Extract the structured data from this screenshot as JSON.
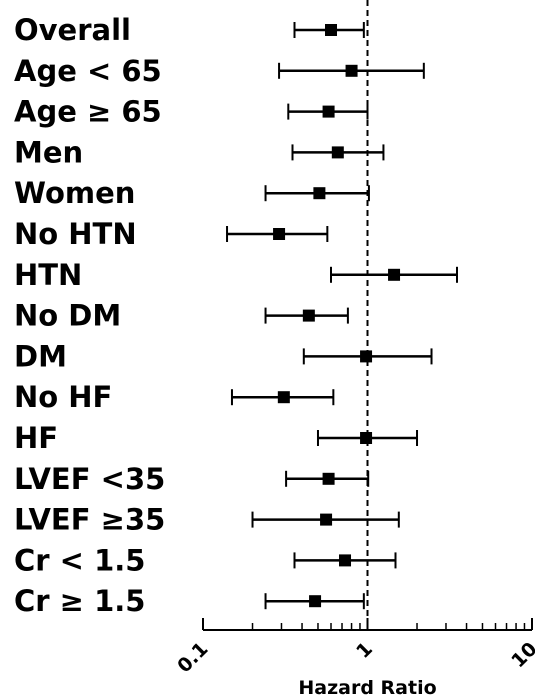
{
  "chart_data": {
    "type": "forest",
    "xlabel": "Hazard Ratio",
    "x_scale": "log",
    "xlim": [
      0.1,
      10
    ],
    "x_ticks": [
      "0.1",
      "1",
      "10"
    ],
    "reference_line": 1,
    "rows": [
      {
        "label": "Overall",
        "hr": 0.6,
        "lo": 0.36,
        "hi": 0.95
      },
      {
        "label": "Age < 65",
        "hr": 0.8,
        "lo": 0.29,
        "hi": 2.2
      },
      {
        "label": "Age ≥ 65",
        "hr": 0.58,
        "lo": 0.33,
        "hi": 1.0
      },
      {
        "label": "Men",
        "hr": 0.66,
        "lo": 0.35,
        "hi": 1.25
      },
      {
        "label": "Women",
        "hr": 0.51,
        "lo": 0.24,
        "hi": 1.02
      },
      {
        "label": "No HTN",
        "hr": 0.29,
        "lo": 0.14,
        "hi": 0.57
      },
      {
        "label": "HTN",
        "hr": 1.45,
        "lo": 0.6,
        "hi": 3.5
      },
      {
        "label": "No DM",
        "hr": 0.44,
        "lo": 0.24,
        "hi": 0.76
      },
      {
        "label": "DM",
        "hr": 0.98,
        "lo": 0.41,
        "hi": 2.45
      },
      {
        "label": "No HF",
        "hr": 0.31,
        "lo": 0.15,
        "hi": 0.62
      },
      {
        "label": "HF",
        "hr": 0.98,
        "lo": 0.5,
        "hi": 2.0
      },
      {
        "label": "LVEF <35",
        "hr": 0.58,
        "lo": 0.32,
        "hi": 1.01
      },
      {
        "label": "LVEF ≥35",
        "hr": 0.56,
        "lo": 0.2,
        "hi": 1.55
      },
      {
        "label": "Cr < 1.5",
        "hr": 0.73,
        "lo": 0.36,
        "hi": 1.48
      },
      {
        "label": "Cr ≥ 1.5",
        "hr": 0.48,
        "lo": 0.24,
        "hi": 0.95
      }
    ]
  },
  "colors": {
    "marker": "#000000",
    "line": "#000000",
    "background": "#ffffff"
  }
}
